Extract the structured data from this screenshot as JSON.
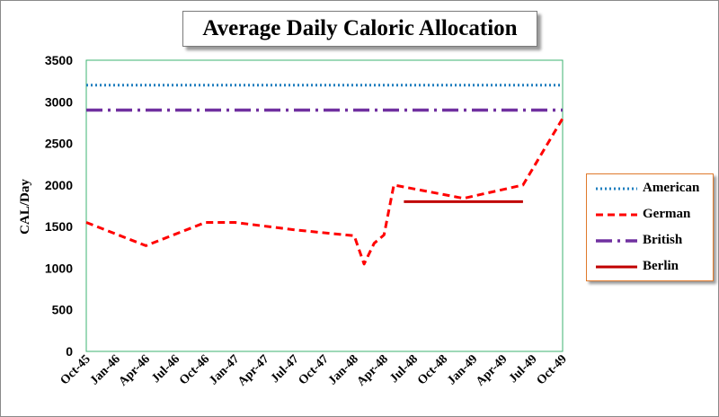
{
  "chart_data": {
    "type": "line",
    "title": "Average Daily Caloric Allocation",
    "ylabel": "CAL/Day",
    "xlabel": "",
    "ylim": [
      0,
      3500
    ],
    "yticks": [
      0,
      500,
      1000,
      1500,
      2000,
      2500,
      3000,
      3500
    ],
    "categories": [
      "Oct-45",
      "Jan-46",
      "Apr-46",
      "Jul-46",
      "Oct-46",
      "Jan-47",
      "Apr-47",
      "Jul-47",
      "Oct-47",
      "Jan-48",
      "Apr-48",
      "Jul-48",
      "Oct-48",
      "Jan-49",
      "Apr-49",
      "Jul-49",
      "Oct-49"
    ],
    "grid": false,
    "legend_position": "right",
    "series": [
      {
        "name": "American",
        "color": "#1f7fbf",
        "style": "dotted",
        "points": [
          [
            0,
            3200
          ],
          [
            16,
            3200
          ]
        ]
      },
      {
        "name": "German",
        "color": "#ff0000",
        "style": "dashed",
        "points": [
          [
            0,
            1550
          ],
          [
            2,
            1270
          ],
          [
            4,
            1550
          ],
          [
            5,
            1550
          ],
          [
            7,
            1460
          ],
          [
            9,
            1390
          ],
          [
            9.33,
            1050
          ],
          [
            9.67,
            1300
          ],
          [
            10,
            1400
          ],
          [
            10.33,
            2000
          ],
          [
            12.67,
            1840
          ],
          [
            14.67,
            2000
          ],
          [
            16,
            2800
          ]
        ]
      },
      {
        "name": "British",
        "color": "#7030a0",
        "style": "dash-dot",
        "points": [
          [
            0,
            2900
          ],
          [
            16,
            2900
          ]
        ]
      },
      {
        "name": "Berlin",
        "color": "#c00000",
        "style": "solid",
        "points": [
          [
            10.67,
            1800
          ],
          [
            14.67,
            1800
          ]
        ]
      }
    ]
  }
}
